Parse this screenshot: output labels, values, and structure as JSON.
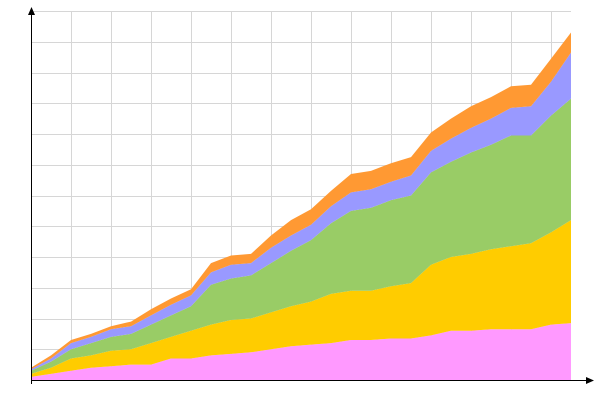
{
  "chart_data": {
    "type": "area",
    "stacked": true,
    "title": "",
    "xlabel": "",
    "ylabel": "",
    "x": [
      0,
      1,
      2,
      3,
      4,
      5,
      6,
      7,
      8,
      9,
      10,
      11,
      12,
      13,
      14,
      15,
      16,
      17,
      18,
      19,
      20,
      21,
      22,
      23,
      24,
      25,
      26,
      27
    ],
    "xlim": [
      0,
      27
    ],
    "ylim": [
      0,
      12
    ],
    "grid": true,
    "legend": "none",
    "tick_labels": false,
    "series": [
      {
        "color": "#ff99ff",
        "values": [
          0.1,
          0.2,
          0.3,
          0.4,
          0.45,
          0.5,
          0.5,
          0.7,
          0.7,
          0.8,
          0.85,
          0.9,
          1.0,
          1.1,
          1.15,
          1.2,
          1.3,
          1.3,
          1.35,
          1.35,
          1.45,
          1.6,
          1.6,
          1.65,
          1.65,
          1.65,
          1.8,
          1.85
        ]
      },
      {
        "color": "#ffcc00",
        "values": [
          0.1,
          0.2,
          0.4,
          0.4,
          0.5,
          0.5,
          0.7,
          0.7,
          0.9,
          1.0,
          1.1,
          1.1,
          1.2,
          1.3,
          1.4,
          1.6,
          1.6,
          1.6,
          1.7,
          1.8,
          2.3,
          2.4,
          2.5,
          2.6,
          2.7,
          2.8,
          3.0,
          3.35
        ]
      },
      {
        "color": "#99cc66",
        "values": [
          0.1,
          0.2,
          0.3,
          0.4,
          0.45,
          0.5,
          0.6,
          0.7,
          0.8,
          1.3,
          1.35,
          1.4,
          1.6,
          1.8,
          2.0,
          2.3,
          2.6,
          2.7,
          2.8,
          2.85,
          3.0,
          3.1,
          3.3,
          3.4,
          3.6,
          3.5,
          3.8,
          3.95
        ]
      },
      {
        "color": "#9999ff",
        "values": [
          0.05,
          0.1,
          0.2,
          0.2,
          0.25,
          0.25,
          0.3,
          0.35,
          0.35,
          0.4,
          0.45,
          0.4,
          0.5,
          0.5,
          0.5,
          0.55,
          0.6,
          0.6,
          0.6,
          0.65,
          0.7,
          0.75,
          0.8,
          0.85,
          0.9,
          0.95,
          1.1,
          1.5
        ]
      },
      {
        "color": "#ff9933",
        "values": [
          0.05,
          0.1,
          0.1,
          0.1,
          0.1,
          0.15,
          0.2,
          0.2,
          0.2,
          0.3,
          0.3,
          0.3,
          0.4,
          0.5,
          0.5,
          0.5,
          0.6,
          0.6,
          0.6,
          0.6,
          0.6,
          0.65,
          0.7,
          0.7,
          0.7,
          0.7,
          0.75,
          0.65
        ]
      }
    ]
  }
}
